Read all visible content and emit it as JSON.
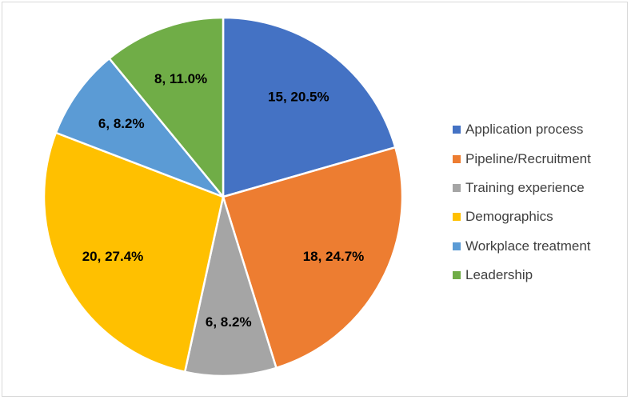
{
  "chart_data": {
    "type": "pie",
    "title": "",
    "start_angle_deg": 0,
    "direction": "clockwise",
    "slices": [
      {
        "label": "Application process",
        "value": 15,
        "percent": "20.5%",
        "data_label": "15, 20.5%",
        "color": "#4472C4"
      },
      {
        "label": "Pipeline/Recruitment",
        "value": 18,
        "percent": "24.7%",
        "data_label": "18, 24.7%",
        "color": "#ED7D31"
      },
      {
        "label": "Training experience",
        "value": 6,
        "percent": "8.2%",
        "data_label": "6, 8.2%",
        "color": "#A5A5A5"
      },
      {
        "label": "Demographics",
        "value": 20,
        "percent": "27.4%",
        "data_label": "20, 27.4%",
        "color": "#FFC000"
      },
      {
        "label": "Workplace treatment",
        "value": 6,
        "percent": "8.2%",
        "data_label": "6, 8.2%",
        "color": "#5B9BD5"
      },
      {
        "label": "Leadership",
        "value": 8,
        "percent": "11.0%",
        "data_label": "8, 11.0%",
        "color": "#70AD47"
      }
    ],
    "legend_position": "right",
    "slice_border_color": "#FFFFFF",
    "label_color": "#000000"
  }
}
